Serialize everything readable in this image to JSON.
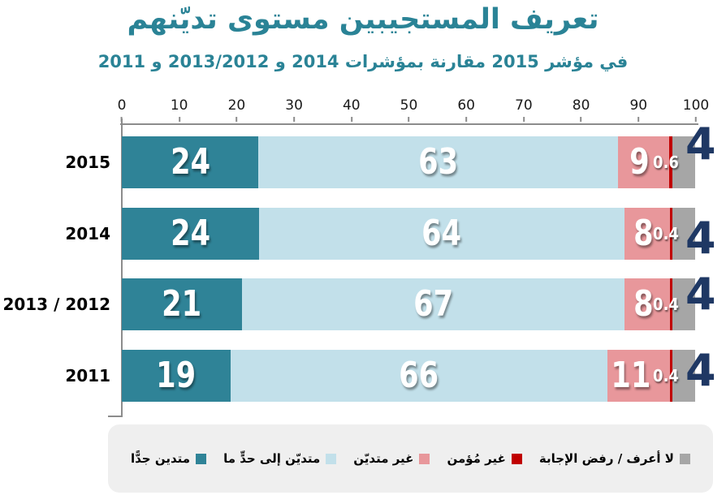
{
  "header": {
    "title": "تعريف المستجيبين مستوى تديّنهم",
    "subtitle": "في مؤشر 2015 مقارنة بمؤشرات 2014 و 2013/2012 و 2011"
  },
  "colors": {
    "title_teal": "#2A8396",
    "navy_value_label": "#1F3864",
    "axis_gray": "#8C8C8C",
    "legend_background": "#EFEFEF"
  },
  "chart_data": {
    "type": "bar",
    "orientation": "horizontal-stacked",
    "title": "تعريف المستجيبين مستوى تديّنهم",
    "subtitle": "في مؤشر 2015 مقارنة بمؤشرات 2014 و 2013/2012 و 2011",
    "categories": [
      "2015",
      "2014",
      "2013 / 2012",
      "2011"
    ],
    "series": [
      {
        "name": "متدين جدًّا",
        "color": "#2F8397",
        "values": [
          24,
          24,
          21,
          19
        ]
      },
      {
        "name": "متديّن إلى حدٍّ ما",
        "color": "#C2E0EA",
        "values": [
          63,
          64,
          67,
          66
        ]
      },
      {
        "name": "غير متديّن",
        "color": "#E8979B",
        "values": [
          9,
          8,
          8,
          11
        ]
      },
      {
        "name": "غير مُؤمن",
        "color": "#C00000",
        "values": [
          0.6,
          0.4,
          0.4,
          0.4
        ]
      },
      {
        "name": "لا أعرف / رفض الإجابة",
        "color": "#A6A6A6",
        "values": [
          4,
          4,
          4,
          4
        ]
      }
    ],
    "xlim": [
      0,
      100
    ],
    "x_ticks": [
      0,
      10,
      20,
      30,
      40,
      50,
      60,
      70,
      80,
      90,
      100
    ],
    "grid": false,
    "legend_position": "bottom"
  }
}
